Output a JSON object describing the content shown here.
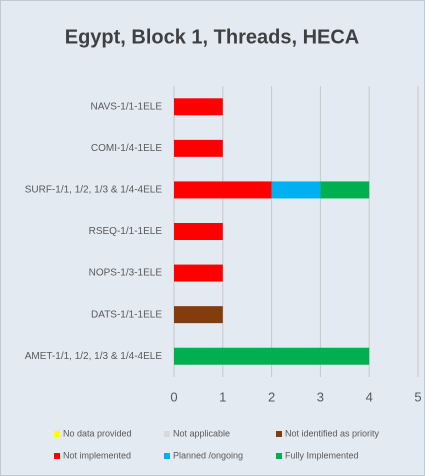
{
  "chart_data": {
    "type": "stacked_barh",
    "title": "Egypt, Block 1, Threads, HECA",
    "categories": [
      "NAVS-1/1-1ELE",
      "COMI-1/4-1ELE",
      "SURF-1/1, 1/2, 1/3 & 1/4-4ELE",
      "RSEQ-1/1-1ELE",
      "NOPS-1/3-1ELE",
      "DATS-1/1-1ELE",
      "AMET-1/1, 1/2, 1/3 & 1/4-4ELE"
    ],
    "series": [
      {
        "name": "No data provided",
        "color": "#ffff00",
        "values": [
          0,
          0,
          0,
          0,
          0,
          0,
          0
        ]
      },
      {
        "name": "Not applicable",
        "color": "#d9d9d9",
        "values": [
          0,
          0,
          0,
          0,
          0,
          0,
          0
        ]
      },
      {
        "name": "Not identified as priority",
        "color": "#843c0c",
        "values": [
          0,
          0,
          0,
          0,
          0,
          1,
          0
        ]
      },
      {
        "name": "Not implemented",
        "color": "#ff0000",
        "values": [
          1,
          1,
          2,
          1,
          1,
          0,
          0
        ]
      },
      {
        "name": "Planned /ongoing",
        "color": "#00b0f0",
        "values": [
          0,
          0,
          1,
          0,
          0,
          0,
          0
        ]
      },
      {
        "name": "Fully Implemented",
        "color": "#00b050",
        "values": [
          0,
          0,
          1,
          0,
          0,
          0,
          4
        ]
      }
    ],
    "xlim": [
      0,
      5
    ],
    "xticks": [
      0,
      1,
      2,
      3,
      4,
      5
    ],
    "grid": true
  }
}
